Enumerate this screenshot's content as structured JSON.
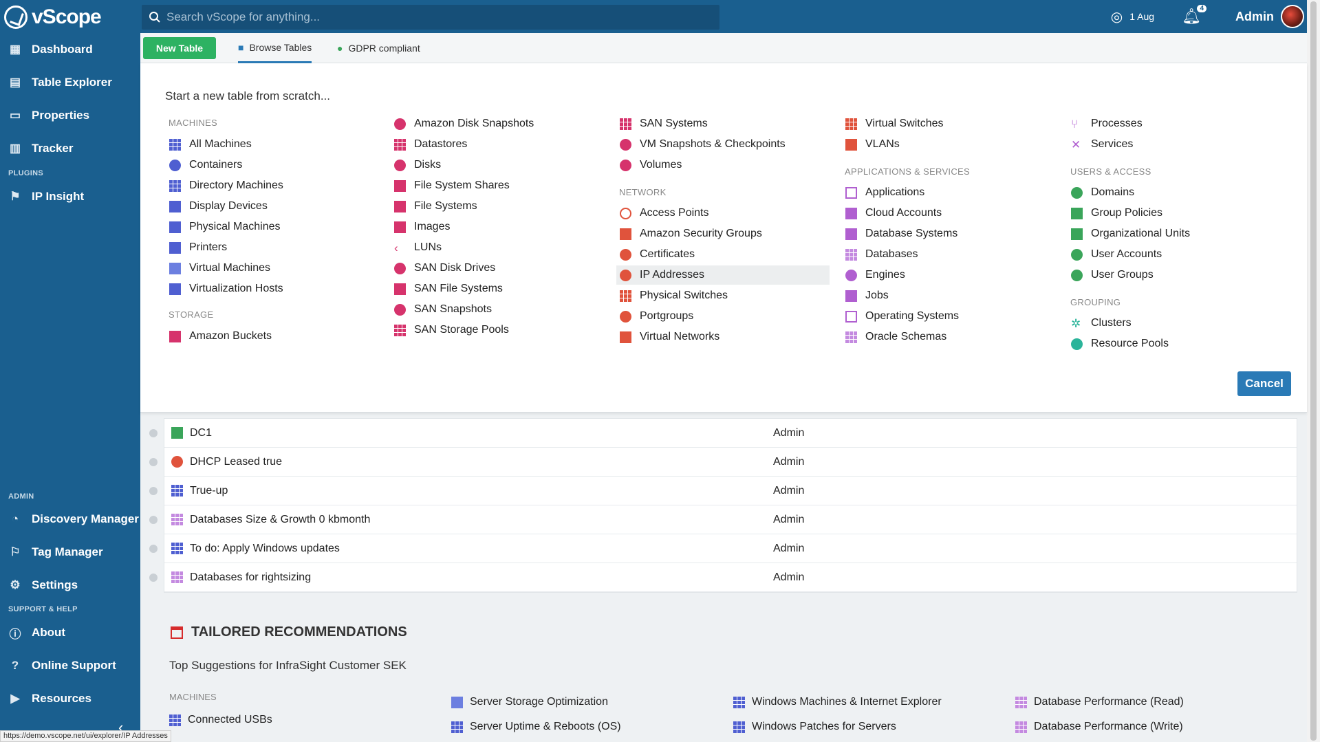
{
  "app": {
    "name": "vScope"
  },
  "sidebar": {
    "items": [
      {
        "label": "Dashboard"
      },
      {
        "label": "Table Explorer"
      },
      {
        "label": "Properties"
      },
      {
        "label": "Tracker"
      }
    ],
    "plugins_label": "PLUGINS",
    "plugins": [
      {
        "label": "IP Insight"
      }
    ],
    "admin_label": "ADMIN",
    "admin": [
      {
        "label": "Discovery Manager"
      },
      {
        "label": "Tag Manager"
      },
      {
        "label": "Settings"
      }
    ],
    "support_label": "SUPPORT & HELP",
    "support": [
      {
        "label": "About"
      },
      {
        "label": "Online Support"
      },
      {
        "label": "Resources"
      }
    ]
  },
  "topbar": {
    "search_placeholder": "Search vScope for anything...",
    "date": "1 Aug",
    "notifications": "4",
    "user": "Admin"
  },
  "tabs": {
    "new_table": "New Table",
    "browse": "Browse Tables",
    "gdpr": "GDPR compliant"
  },
  "panel": {
    "title": "Start a new table from scratch...",
    "cancel": "Cancel",
    "col1": {
      "machines_label": "MACHINES",
      "machines": [
        "All Machines",
        "Containers",
        "Directory Machines",
        "Display Devices",
        "Physical Machines",
        "Printers",
        "Virtual Machines",
        "Virtualization Hosts"
      ],
      "storage_label": "STORAGE",
      "storage": [
        "Amazon Buckets"
      ]
    },
    "col2": {
      "items": [
        "Amazon Disk Snapshots",
        "Datastores",
        "Disks",
        "File System Shares",
        "File Systems",
        "Images",
        "LUNs",
        "SAN Disk Drives",
        "SAN File Systems",
        "SAN Snapshots",
        "SAN Storage Pools"
      ]
    },
    "col3": {
      "items": [
        "SAN Systems",
        "VM Snapshots & Checkpoints",
        "Volumes"
      ],
      "network_label": "NETWORK",
      "network": [
        "Access Points",
        "Amazon Security Groups",
        "Certificates",
        "IP Addresses",
        "Physical Switches",
        "Portgroups",
        "Virtual Networks"
      ]
    },
    "col4": {
      "items": [
        "Virtual Switches",
        "VLANs"
      ],
      "apps_label": "APPLICATIONS & SERVICES",
      "apps": [
        "Applications",
        "Cloud Accounts",
        "Database Systems",
        "Databases",
        "Engines",
        "Jobs",
        "Operating Systems",
        "Oracle Schemas"
      ]
    },
    "col5": {
      "items": [
        "Processes",
        "Services"
      ],
      "users_label": "USERS & ACCESS",
      "users": [
        "Domains",
        "Group Policies",
        "Organizational Units",
        "User Accounts",
        "User Groups"
      ],
      "grouping_label": "GROUPING",
      "grouping": [
        "Clusters",
        "Resource Pools"
      ]
    }
  },
  "table": {
    "rows": [
      {
        "name": "DC1",
        "owner": "Admin"
      },
      {
        "name": "DHCP Leased true",
        "owner": "Admin"
      },
      {
        "name": "True-up",
        "owner": "Admin"
      },
      {
        "name": "Databases Size & Growth 0 kbmonth",
        "owner": "Admin"
      },
      {
        "name": "To do: Apply Windows updates",
        "owner": "Admin"
      },
      {
        "name": "Databases for rightsizing",
        "owner": "Admin"
      }
    ]
  },
  "recommendations": {
    "title": "TAILORED RECOMMENDATIONS",
    "subtitle": "Top Suggestions for InfraSight Customer SEK",
    "machines_label": "MACHINES",
    "items": [
      "Connected USBs",
      "Server Storage Optimization",
      "Server Uptime & Reboots (OS)",
      "Windows Machines & Internet Explorer",
      "Windows Patches for Servers",
      "Database Performance (Read)",
      "Database Performance (Write)"
    ]
  },
  "statusbar": {
    "url": "https://demo.vscope.net/ui/explorer/IP Addresses"
  }
}
